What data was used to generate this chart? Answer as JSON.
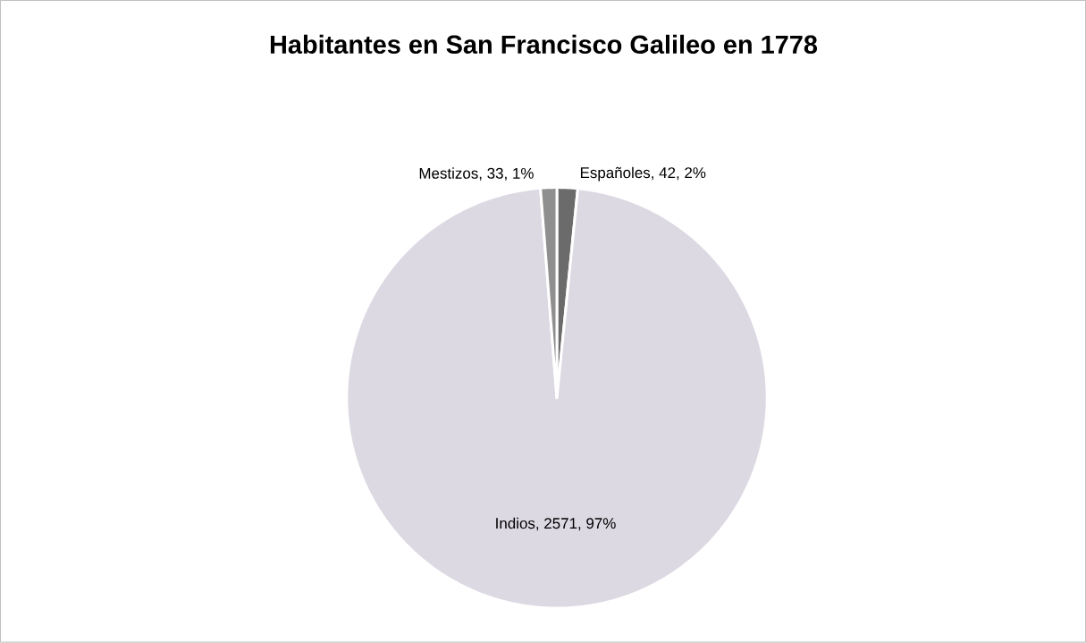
{
  "chart_data": {
    "type": "pie",
    "title": "Habitantes en San Francisco Galileo en 1778",
    "categories": [
      "Españoles",
      "Indios",
      "Mestizos"
    ],
    "values": [
      42,
      2571,
      33
    ],
    "value_labels": [
      ", 42, 2%",
      ", 2571, 97%",
      ", 33, 1%"
    ],
    "colors": [
      "#6b6b6b",
      "#ddd9e3",
      "#8f8f8f"
    ]
  }
}
